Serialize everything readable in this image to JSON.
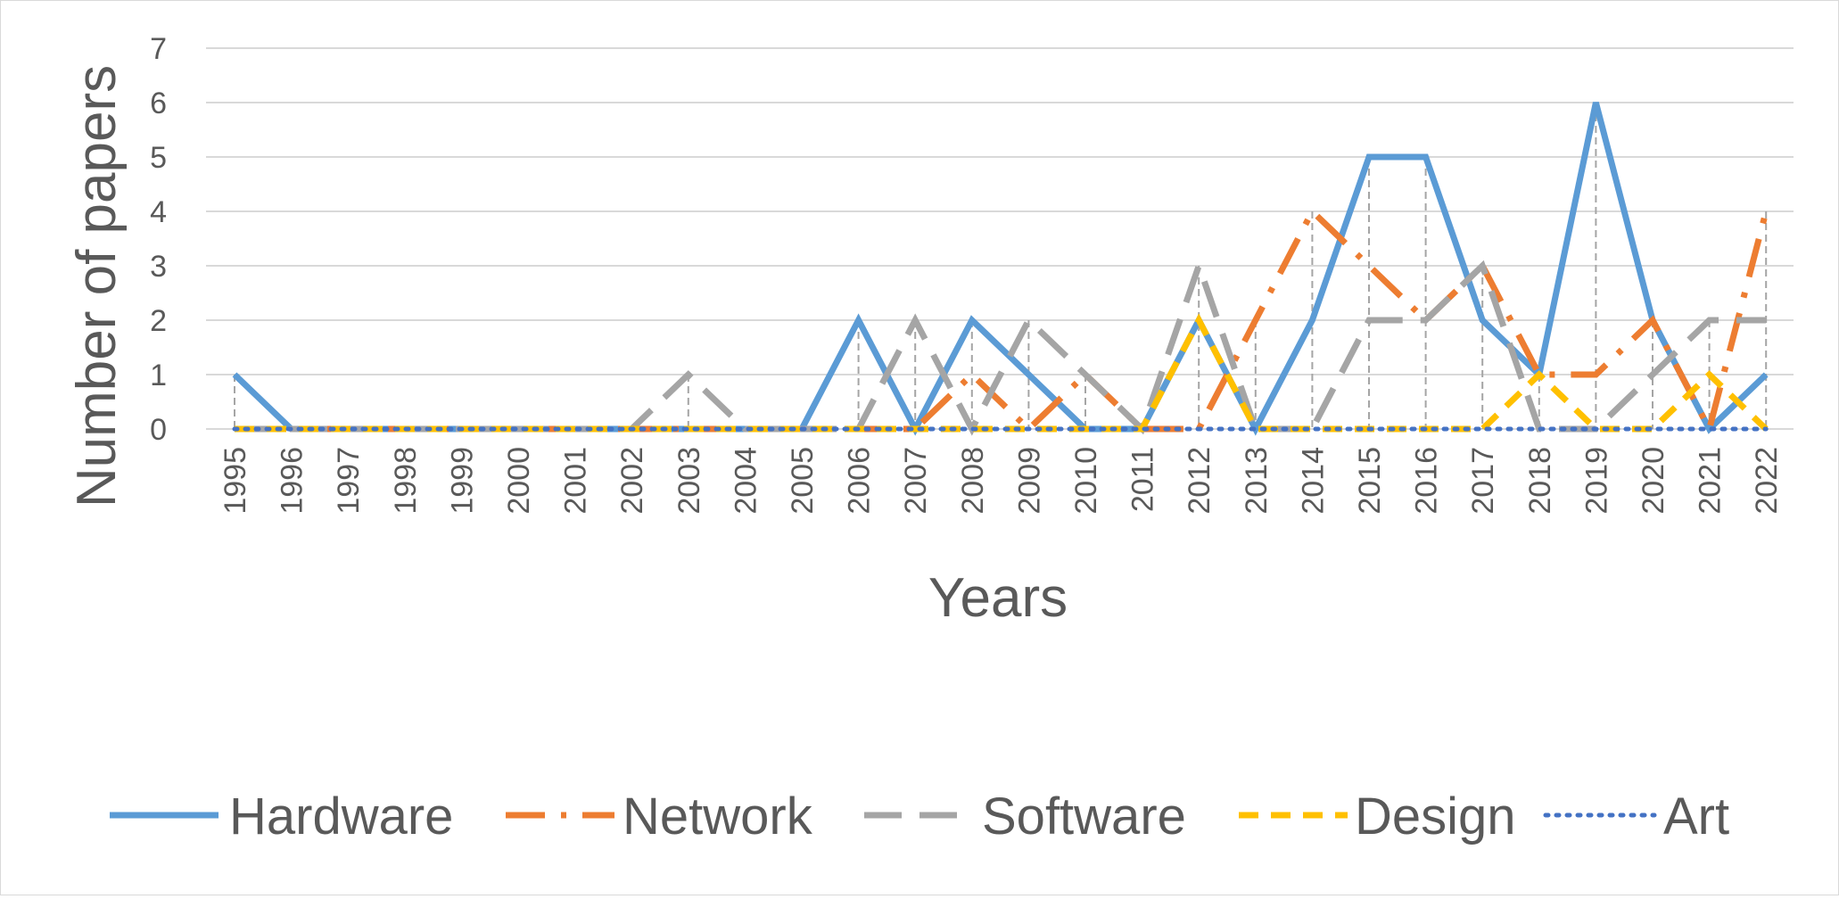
{
  "chart_data": {
    "type": "line",
    "xlabel": "Years",
    "ylabel": "Number of papers",
    "ylim": [
      0,
      7
    ],
    "yticks": [
      "0",
      "1",
      "2",
      "3",
      "4",
      "5",
      "6",
      "7"
    ],
    "grid": true,
    "legend_position": "bottom",
    "categories": [
      "1995",
      "1996",
      "1997",
      "1998",
      "1999",
      "2000",
      "2001",
      "2002",
      "2003",
      "2004",
      "2005",
      "2006",
      "2007",
      "2008",
      "2009",
      "2010",
      "2011",
      "2012",
      "2013",
      "2014",
      "2015",
      "2016",
      "2017",
      "2018",
      "2019",
      "2020",
      "2021",
      "2022"
    ],
    "series": [
      {
        "name": "Hardware",
        "color": "#5b9bd5",
        "style": "solid",
        "values": [
          1,
          0,
          0,
          0,
          0,
          0,
          0,
          0,
          0,
          0,
          0,
          2,
          0,
          2,
          1,
          0,
          0,
          2,
          0,
          2,
          5,
          5,
          2,
          1,
          6,
          2,
          0,
          1
        ]
      },
      {
        "name": "Network",
        "color": "#ed7d31",
        "style": "dash-dot",
        "values": [
          0,
          0,
          0,
          0,
          0,
          0,
          0,
          0,
          0,
          0,
          0,
          0,
          0,
          1,
          0,
          1,
          0,
          0,
          2,
          4,
          3,
          2,
          3,
          1,
          1,
          2,
          0,
          4
        ]
      },
      {
        "name": "Software",
        "color": "#a5a5a5",
        "style": "long-dash",
        "values": [
          0,
          0,
          0,
          0,
          0,
          0,
          0,
          0,
          1,
          0,
          0,
          0,
          2,
          0,
          2,
          1,
          0,
          3,
          0,
          0,
          2,
          2,
          3,
          0,
          0,
          1,
          2,
          2
        ]
      },
      {
        "name": "Design",
        "color": "#ffc000",
        "style": "dash",
        "values": [
          0,
          0,
          0,
          0,
          0,
          0,
          0,
          0,
          0,
          0,
          0,
          0,
          0,
          0,
          0,
          0,
          0,
          2,
          0,
          0,
          0,
          0,
          0,
          1,
          0,
          0,
          1,
          0
        ]
      },
      {
        "name": "Art",
        "color": "#4472c4",
        "style": "dot",
        "values": [
          0,
          0,
          0,
          0,
          0,
          0,
          0,
          0,
          0,
          0,
          0,
          0,
          0,
          0,
          0,
          0,
          0,
          0,
          0,
          0,
          0,
          0,
          0,
          0,
          0,
          0,
          0,
          0
        ]
      }
    ]
  }
}
